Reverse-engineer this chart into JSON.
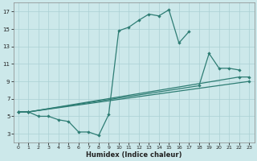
{
  "xlabel": "Humidex (Indice chaleur)",
  "bg_color": "#cce8ea",
  "grid_color": "#aad0d4",
  "line_color": "#2e7d74",
  "xlim": [
    -0.5,
    23.5
  ],
  "ylim": [
    2,
    18
  ],
  "xticks": [
    0,
    1,
    2,
    3,
    4,
    5,
    6,
    7,
    8,
    9,
    10,
    11,
    12,
    13,
    14,
    15,
    16,
    17,
    18,
    19,
    20,
    21,
    22,
    23
  ],
  "yticks": [
    3,
    5,
    7,
    9,
    11,
    13,
    15,
    17
  ],
  "line1_x": [
    0,
    1,
    2,
    3,
    4,
    5,
    6,
    7,
    8,
    9,
    10,
    11,
    12,
    13,
    14,
    15,
    16,
    17
  ],
  "line1_y": [
    5.5,
    5.5,
    5.0,
    5.0,
    4.6,
    4.4,
    3.2,
    3.2,
    2.8,
    5.2,
    14.8,
    15.2,
    16.0,
    16.7,
    16.5,
    17.2,
    13.4,
    14.7
  ],
  "line2_x": [
    0,
    1,
    18,
    19,
    20,
    21,
    22
  ],
  "line2_y": [
    5.5,
    5.5,
    8.5,
    12.2,
    10.5,
    10.5,
    10.3
  ],
  "line3_x": [
    0,
    1,
    22,
    23
  ],
  "line3_y": [
    5.5,
    5.5,
    9.5,
    9.5
  ],
  "line4_x": [
    0,
    1,
    23
  ],
  "line4_y": [
    5.5,
    5.5,
    9.0
  ]
}
